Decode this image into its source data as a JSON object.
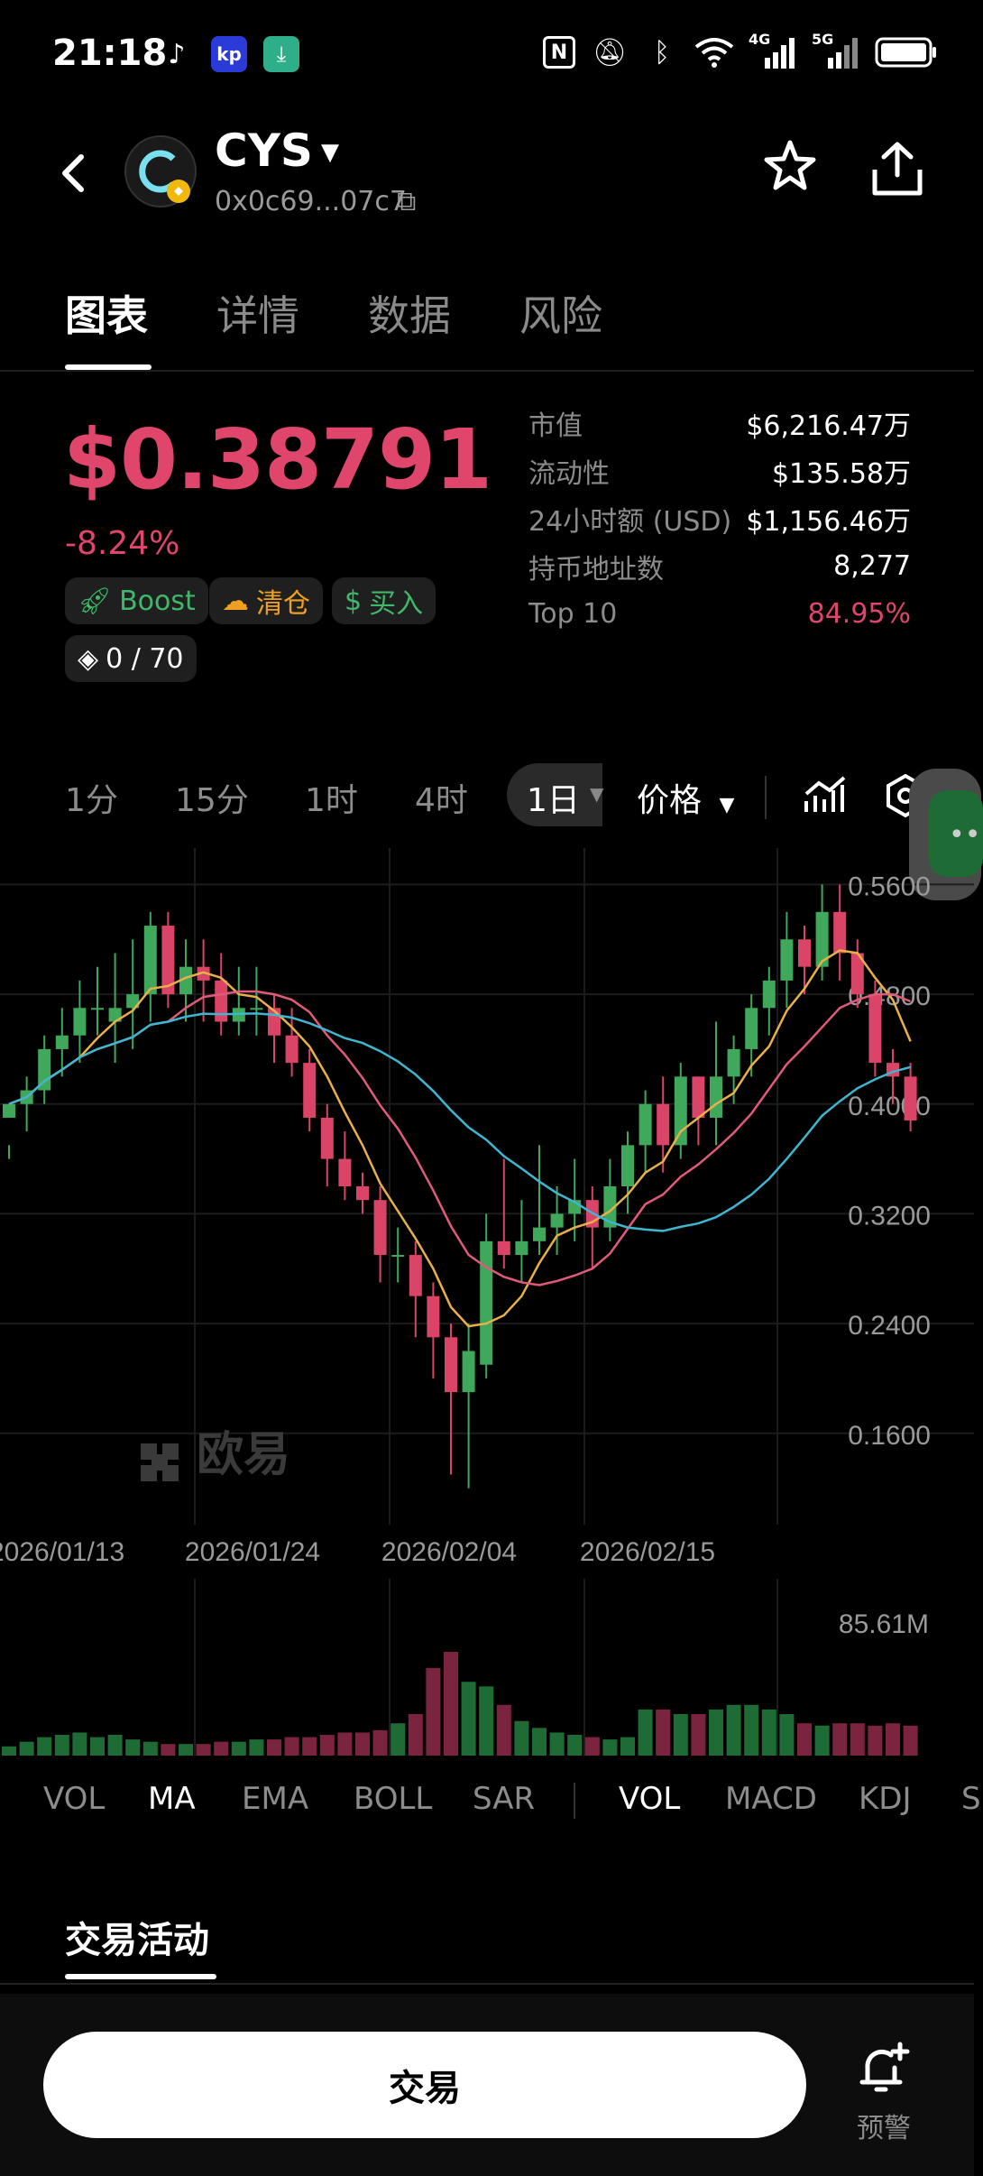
{
  "status_bar": {
    "time": "21:18",
    "app_icons": [
      "tiktok-icon",
      "app-icon",
      "download-icon"
    ],
    "system_icons": [
      "nfc-icon",
      "mute-icon",
      "bluetooth-icon",
      "wifi-icon",
      "signal-4g-icon",
      "signal-5g-icon",
      "battery-icon"
    ],
    "net_4g": "4G",
    "net_5g": "5G"
  },
  "header": {
    "symbol": "CYS",
    "address": "0x0c69...07c7"
  },
  "tabs": [
    {
      "label": "图表",
      "active": true
    },
    {
      "label": "详情",
      "active": false
    },
    {
      "label": "数据",
      "active": false
    },
    {
      "label": "风险",
      "active": false
    }
  ],
  "price": {
    "value": "$0.38791",
    "change": "-8.24%",
    "color": "#e0456b"
  },
  "tags": {
    "boost": "Boost",
    "clear": "清仓",
    "buy": "买入",
    "progress": "0 / 70"
  },
  "stats": [
    {
      "label": "市值",
      "value": "$6,216.47万"
    },
    {
      "label": "流动性",
      "value": "$135.58万"
    },
    {
      "label": "24小时额 (USD)",
      "value": "$1,156.46万"
    },
    {
      "label": "持币地址数",
      "value": "8,277"
    },
    {
      "label": "Top 10",
      "value": "84.95%"
    }
  ],
  "timeframes": [
    "1分",
    "15分",
    "1时",
    "4时",
    "1日"
  ],
  "price_dropdown": "价格",
  "watermark": "欧易",
  "chart_data": {
    "type": "candlestick",
    "y_ticks": [
      "0.5600",
      "0.4800",
      "0.4000",
      "0.3200",
      "0.2400",
      "0.1600"
    ],
    "ylim": [
      0.1,
      0.58
    ],
    "x_ticks": [
      "2026/01/13",
      "2026/01/24",
      "2026/02/04",
      "2026/02/15"
    ],
    "candles": [
      [
        0.39,
        0.4,
        0.37,
        0.36
      ],
      [
        0.4,
        0.41,
        0.42,
        0.38
      ],
      [
        0.41,
        0.44,
        0.45,
        0.4
      ],
      [
        0.44,
        0.45,
        0.47,
        0.42
      ],
      [
        0.45,
        0.47,
        0.49,
        0.43
      ],
      [
        0.47,
        0.47,
        0.5,
        0.45
      ],
      [
        0.46,
        0.47,
        0.51,
        0.43
      ],
      [
        0.47,
        0.48,
        0.52,
        0.44
      ],
      [
        0.48,
        0.53,
        0.54,
        0.46
      ],
      [
        0.53,
        0.48,
        0.54,
        0.47
      ],
      [
        0.48,
        0.5,
        0.52,
        0.46
      ],
      [
        0.5,
        0.49,
        0.52,
        0.46
      ],
      [
        0.49,
        0.46,
        0.51,
        0.45
      ],
      [
        0.46,
        0.47,
        0.5,
        0.45
      ],
      [
        0.47,
        0.47,
        0.5,
        0.45
      ],
      [
        0.47,
        0.45,
        0.48,
        0.43
      ],
      [
        0.45,
        0.43,
        0.47,
        0.42
      ],
      [
        0.43,
        0.39,
        0.44,
        0.38
      ],
      [
        0.39,
        0.36,
        0.4,
        0.34
      ],
      [
        0.36,
        0.34,
        0.38,
        0.33
      ],
      [
        0.34,
        0.33,
        0.35,
        0.32
      ],
      [
        0.33,
        0.29,
        0.34,
        0.27
      ],
      [
        0.29,
        0.29,
        0.31,
        0.27
      ],
      [
        0.29,
        0.26,
        0.3,
        0.23
      ],
      [
        0.26,
        0.23,
        0.27,
        0.2
      ],
      [
        0.23,
        0.19,
        0.24,
        0.13
      ],
      [
        0.19,
        0.22,
        0.24,
        0.12
      ],
      [
        0.21,
        0.3,
        0.32,
        0.2
      ],
      [
        0.3,
        0.29,
        0.36,
        0.28
      ],
      [
        0.29,
        0.3,
        0.33,
        0.27
      ],
      [
        0.3,
        0.31,
        0.37,
        0.29
      ],
      [
        0.31,
        0.32,
        0.34,
        0.29
      ],
      [
        0.32,
        0.33,
        0.36,
        0.3
      ],
      [
        0.33,
        0.31,
        0.34,
        0.28
      ],
      [
        0.31,
        0.34,
        0.36,
        0.3
      ],
      [
        0.34,
        0.37,
        0.38,
        0.32
      ],
      [
        0.37,
        0.4,
        0.41,
        0.35
      ],
      [
        0.4,
        0.37,
        0.42,
        0.35
      ],
      [
        0.37,
        0.42,
        0.43,
        0.36
      ],
      [
        0.42,
        0.39,
        0.42,
        0.37
      ],
      [
        0.39,
        0.42,
        0.46,
        0.37
      ],
      [
        0.42,
        0.44,
        0.45,
        0.4
      ],
      [
        0.44,
        0.47,
        0.48,
        0.42
      ],
      [
        0.47,
        0.49,
        0.5,
        0.45
      ],
      [
        0.49,
        0.52,
        0.54,
        0.47
      ],
      [
        0.52,
        0.5,
        0.53,
        0.48
      ],
      [
        0.5,
        0.54,
        0.56,
        0.49
      ],
      [
        0.54,
        0.51,
        0.56,
        0.49
      ],
      [
        0.51,
        0.48,
        0.52,
        0.47
      ],
      [
        0.48,
        0.43,
        0.49,
        0.42
      ],
      [
        0.43,
        0.42,
        0.44,
        0.4
      ],
      [
        0.42,
        0.388,
        0.43,
        0.38
      ]
    ],
    "volume_label": "85.61M",
    "volumes": [
      4,
      6,
      8,
      9,
      10,
      8,
      9,
      7,
      6,
      5,
      5,
      5,
      6,
      6,
      7,
      7,
      8,
      8,
      9,
      10,
      10,
      11,
      14,
      18,
      38,
      45,
      32,
      30,
      22,
      15,
      12,
      10,
      9,
      8,
      7,
      8,
      20,
      20,
      18,
      18,
      20,
      22,
      22,
      20,
      18,
      14,
      13,
      14,
      14,
      13,
      14,
      13
    ],
    "up_color": "#3fa85b",
    "down_color": "#d94467",
    "ma_colors": [
      "#e8b04a",
      "#e25a7a",
      "#3fb6cf"
    ]
  },
  "indicators_main": [
    "VOL",
    "MA",
    "EMA",
    "BOLL",
    "SAR"
  ],
  "indicators_sub": [
    "VOL",
    "MACD",
    "KDJ",
    "S"
  ],
  "activity_tab": "交易活动",
  "bottom": {
    "trade": "交易",
    "alert": "预警"
  }
}
